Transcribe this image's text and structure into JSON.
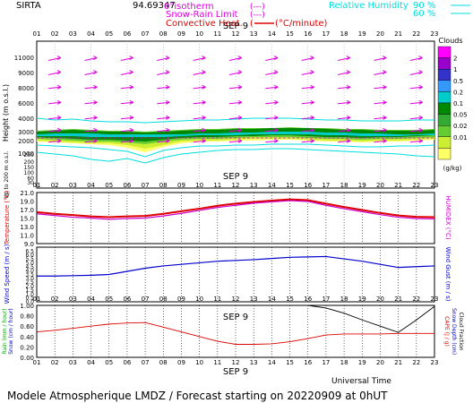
{
  "header": {
    "station": "SIRTA",
    "coords": "94.69347",
    "isotherm_label": "0°isotherm",
    "snowrain_label": "Snow-Rain Limit",
    "convective_label": "Convective Heat.",
    "conv_unit": "(°C/minute)",
    "rh_label": "Relative Humidity",
    "rh90": "90 %",
    "rh60": "60 %",
    "dash": "(---)"
  },
  "hours": [
    "01",
    "02",
    "03",
    "04",
    "05",
    "06",
    "07",
    "08",
    "09",
    "10",
    "11",
    "12",
    "13",
    "14",
    "15",
    "16",
    "17",
    "18",
    "19",
    "20",
    "21",
    "22",
    "23"
  ],
  "date_label": "SEP  9",
  "universal_time": "Universal Time",
  "footer": "Modele Atmospherique LMDZ / Forecast starting on 20220909 at 0hUT",
  "colors": {
    "temp": "#dd0000",
    "humidex": "#cc00cc",
    "wind": "#0000cc",
    "gust": "#000000",
    "rain": "#dd0000",
    "cloud_fraction": "#000000",
    "arrow": "#dd00dd",
    "cyan": "#00dddd"
  },
  "chart_data": [
    {
      "type": "heatmap",
      "ylabel": "Height  (m o.s.l.)",
      "ylabel2": "Up to 200 m o.s.l.",
      "yticks_upper": [
        "11000",
        "9000",
        "8000",
        "6000",
        "4000",
        "3000",
        "2000",
        "1000"
      ],
      "yticks_lower": [
        "250",
        "200",
        "150",
        "100",
        "60",
        "30"
      ],
      "colorbar_title": "Clouds",
      "colorbar_unit": "(g/kg)",
      "colorbar_ticks": [
        "2",
        "1",
        "0.5",
        "0.2",
        "0.1",
        "0.05",
        "0.02",
        "0.01"
      ],
      "colorbar_colors": [
        "#ff00ff",
        "#9900cc",
        "#3333cc",
        "#3399ff",
        "#00cccc",
        "#008800",
        "#33aa33",
        "#66cc33",
        "#ccee33",
        "#ffff66"
      ],
      "wind_arrows_rows": [
        11000,
        9000,
        8000,
        6000,
        4000,
        3000,
        2000
      ]
    },
    {
      "type": "line",
      "ylabel": "Temperature (°C)",
      "ylabel_right": "HUMIDEX (°C)",
      "yticks": [
        "21.0",
        "19.0",
        "17.0",
        "15.0",
        "13.0",
        "11.0",
        "9.0"
      ],
      "ylim": [
        9,
        21
      ],
      "series": [
        {
          "name": "Temperature",
          "values": [
            16.4,
            16.0,
            15.7,
            15.4,
            15.2,
            15.4,
            15.5,
            16.0,
            16.6,
            17.2,
            17.9,
            18.4,
            18.8,
            19.1,
            19.4,
            19.2,
            18.4,
            17.6,
            16.9,
            16.2,
            15.6,
            15.3,
            15.2
          ]
        },
        {
          "name": "Humidex",
          "values": [
            16.0,
            15.6,
            15.2,
            15.0,
            14.7,
            14.9,
            15.0,
            15.5,
            16.1,
            16.8,
            17.5,
            18.0,
            18.5,
            18.8,
            19.1,
            18.9,
            18.0,
            17.2,
            16.5,
            15.8,
            15.2,
            14.9,
            14.8
          ]
        }
      ]
    },
    {
      "type": "line",
      "ylabel": "Wind Speed (m / s)",
      "ylabel_right": "Wind Gust (m / s)",
      "yticks": [
        "6.5",
        "6.0",
        "5.5",
        "5.0",
        "4.5",
        "4.0",
        "3.5",
        "3.0",
        "2.5",
        "2.0",
        "1.5",
        "1.0",
        "0.5",
        "0.0"
      ],
      "ylim": [
        0,
        7
      ],
      "series": [
        {
          "name": "Wind Speed",
          "values": [
            3.3,
            3.3,
            3.35,
            3.4,
            3.5,
            3.9,
            4.3,
            4.6,
            4.8,
            5.0,
            5.2,
            5.3,
            5.4,
            5.55,
            5.7,
            5.75,
            5.8,
            5.5,
            5.2,
            4.8,
            4.4,
            4.5,
            4.6
          ]
        }
      ]
    },
    {
      "type": "line",
      "ylabel": "Rain (mm / hour)",
      "ylabel2": "Snow (cm / hour)",
      "ylabel_right": "CAPE (J / g)",
      "ylabel_right2": "Snow Depth (cm)",
      "ylabel_right3": "Cloud Fraction",
      "yticks": [
        "1.00",
        "0.80",
        "0.60",
        "0.40",
        "0.20",
        "0.00"
      ],
      "ylim": [
        0,
        1
      ],
      "series": [
        {
          "name": "Rain",
          "values": [
            0.49,
            0.52,
            0.56,
            0.6,
            0.64,
            0.66,
            0.67,
            0.58,
            0.49,
            0.4,
            0.31,
            0.25,
            0.25,
            0.26,
            0.3,
            0.36,
            0.43,
            0.45,
            0.45,
            0.45,
            0.46,
            0.46,
            0.46
          ]
        },
        {
          "name": "Cloud Fraction",
          "values": [
            1,
            1,
            1,
            1,
            1,
            1,
            1,
            1,
            1,
            1,
            1,
            1,
            1,
            1,
            1,
            1,
            0.95,
            0.85,
            0.72,
            0.6,
            0.48,
            0.72,
            0.98
          ]
        }
      ]
    }
  ]
}
